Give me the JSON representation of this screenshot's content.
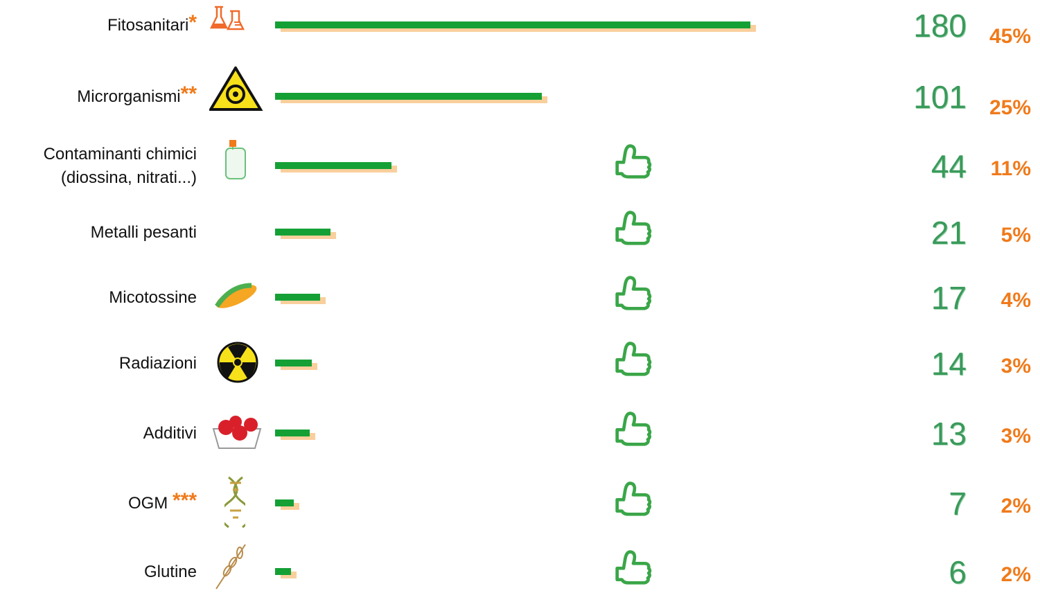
{
  "chart_data": {
    "type": "bar",
    "orientation": "horizontal",
    "categories": [
      "Fitosanitari",
      "Microrganismi",
      "Contaminanti chimici\n(diossina, nitrati...)",
      "Metalli pesanti",
      "Micotossine",
      "Radiazioni",
      "Additivi",
      "OGM",
      "Glutine"
    ],
    "markers": [
      "*",
      "**",
      null,
      null,
      null,
      null,
      null,
      "***",
      null
    ],
    "values": [
      180,
      101,
      44,
      21,
      17,
      14,
      13,
      7,
      6
    ],
    "share_labels": [
      "45%",
      "25%",
      "11%",
      "5%",
      "4%",
      "3%",
      "3%",
      "2%",
      "2%"
    ],
    "color": "#15a035",
    "shadow_color": "#f9cf9c"
  }
}
